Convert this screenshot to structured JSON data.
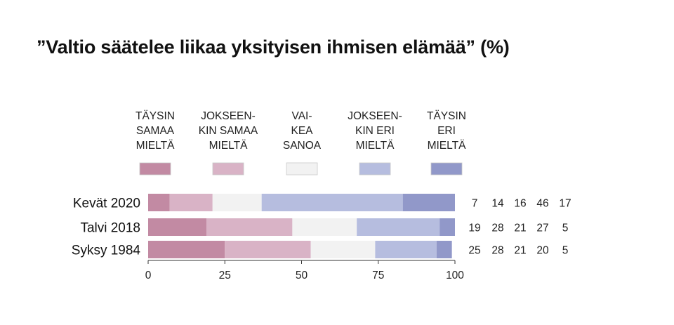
{
  "title": "”Valtio säätelee liikaa yksityisen ihmisen elämää” (%)",
  "chart_data": {
    "type": "bar",
    "orientation": "horizontal",
    "stacked": true,
    "categories": [
      "Kevät 2020",
      "Talvi 2018",
      "Syksy 1984"
    ],
    "series": [
      {
        "name": "TÄYSIN SAMAA MIELTÄ",
        "legend_lines": [
          "TÄYSIN",
          "SAMAA",
          "MIELTÄ"
        ],
        "color": "#c28aa3",
        "values": [
          7,
          19,
          25
        ]
      },
      {
        "name": "JOKSEEN-KIN SAMAA MIELTÄ",
        "legend_lines": [
          "JOKSEEN-",
          "KIN SAMAA",
          "MIELTÄ"
        ],
        "color": "#d9b3c6",
        "values": [
          14,
          28,
          28
        ]
      },
      {
        "name": "VAI-KEA SANOA",
        "legend_lines": [
          "VAI-",
          "KEA",
          "SANOA"
        ],
        "color": "#f2f2f2",
        "values": [
          16,
          21,
          21
        ]
      },
      {
        "name": "JOKSEEN-KIN ERI MIELTÄ",
        "legend_lines": [
          "JOKSEEN-",
          "KIN ERI",
          "MIELTÄ"
        ],
        "color": "#b6bddf",
        "values": [
          46,
          27,
          20
        ]
      },
      {
        "name": "TÄYSIN ERI MIELTÄ",
        "legend_lines": [
          "TÄYSIN",
          "ERI",
          "MIELTÄ"
        ],
        "color": "#9198c9",
        "values": [
          17,
          5,
          5
        ]
      }
    ],
    "xlim": [
      0,
      100
    ],
    "xticks": [
      0,
      25,
      50,
      75,
      100
    ],
    "xlabel": "",
    "ylabel": "",
    "grid": false,
    "legend_position": "top"
  }
}
